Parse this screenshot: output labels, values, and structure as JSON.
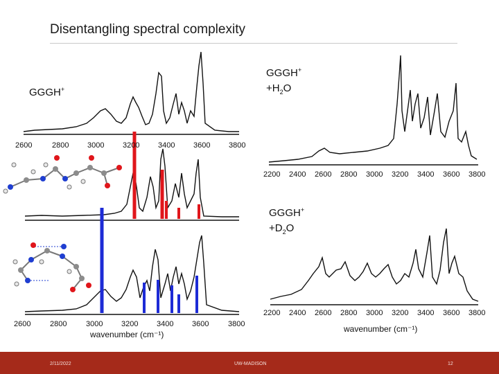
{
  "slide": {
    "title": "Disentangling spectral complexity",
    "footer": {
      "date": "2/11/2022",
      "org": "UW-MADISON",
      "page": "12"
    }
  },
  "labels": {
    "gggh_top_left": {
      "main": "GGGH",
      "sup": "+"
    },
    "gggh_h2o": {
      "line1_main": "GGGH",
      "line1_sup": "+",
      "line2_pre": "+H",
      "line2_sub": "2",
      "line2_post": "O"
    },
    "gggh_d2o": {
      "line1_main": "GGGH",
      "line1_sup": "+",
      "line2_pre": "+D",
      "line2_sub": "2",
      "line2_post": "O"
    }
  },
  "colors": {
    "red": "#e0161b",
    "blue": "#1d2bd6",
    "trace": "#111111",
    "footer": "#a52a1a"
  },
  "chart_data": [
    {
      "type": "line",
      "title": "",
      "x_ticks": [
        "2600",
        "2800",
        "3000",
        "3200",
        "3400",
        "3600",
        "3800"
      ],
      "xlabel": "",
      "note": "GGGH+ experimental IR spectrum (upper left)"
    },
    {
      "type": "line",
      "x_ticks": [],
      "xlabel": "",
      "note": "GGGH+ experiment with red calculated stick spectrum"
    },
    {
      "type": "line",
      "x_ticks": [
        "2600",
        "2800",
        "3000",
        "3200",
        "3400",
        "3600",
        "3800"
      ],
      "xlabel": "wavenumber (cm⁻¹)",
      "note": "experiment with blue calculated stick spectrum"
    },
    {
      "type": "line",
      "x_ticks": [
        "2200",
        "2400",
        "2600",
        "2800",
        "3000",
        "3200",
        "3400",
        "3600",
        "3800"
      ],
      "xlabel": "",
      "note": "GGGH+ +H2O spectrum"
    },
    {
      "type": "line",
      "x_ticks": [
        "2200",
        "2400",
        "2600",
        "2800",
        "3000",
        "3200",
        "3400",
        "3600",
        "3800"
      ],
      "xlabel": "wavenumber (cm⁻¹)",
      "note": "GGGH+ +D2O spectrum"
    }
  ]
}
